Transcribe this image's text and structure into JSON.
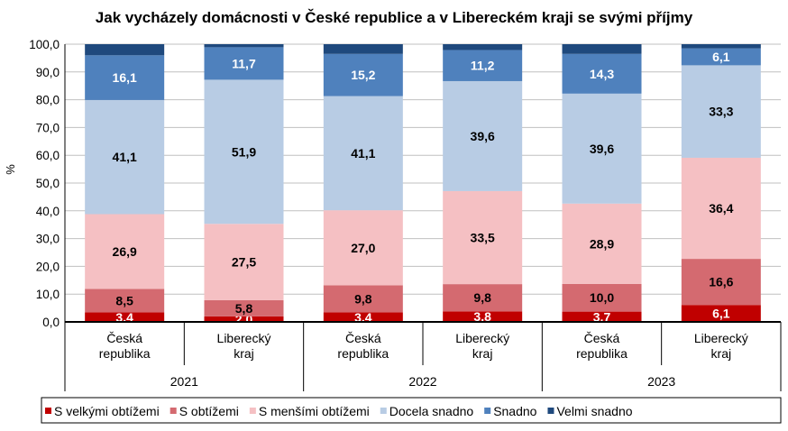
{
  "chart_data": {
    "type": "bar",
    "stacked": true,
    "title": "Jak vycházely domácnosti v České republice a v Libereckém kraji se svými příjmy",
    "ylabel": "%",
    "xlabel": "",
    "ylim": [
      0,
      100
    ],
    "yticks": [
      "0,0",
      "10,0",
      "20,0",
      "30,0",
      "40,0",
      "50,0",
      "60,0",
      "70,0",
      "80,0",
      "90,0",
      "100,0"
    ],
    "grid": true,
    "legend_position": "bottom",
    "categories": [
      {
        "label": [
          "Česká",
          "republika"
        ],
        "group": "2021"
      },
      {
        "label": [
          "Liberecký",
          "kraj"
        ],
        "group": "2021"
      },
      {
        "label": [
          "Česká",
          "republika"
        ],
        "group": "2022"
      },
      {
        "label": [
          "Liberecký",
          "kraj"
        ],
        "group": "2022"
      },
      {
        "label": [
          "Česká",
          "republika"
        ],
        "group": "2023"
      },
      {
        "label": [
          "Liberecký",
          "kraj"
        ],
        "group": "2023"
      }
    ],
    "groups": [
      "2021",
      "2022",
      "2023"
    ],
    "series": [
      {
        "name": "S velkými obtížemi",
        "color": "#c00000",
        "labelColor": "#ffffff",
        "values": [
          3.4,
          2.0,
          3.4,
          3.8,
          3.7,
          6.1
        ],
        "labels": [
          "3,4",
          "2,0",
          "3,4",
          "3,8",
          "3,7",
          "6,1"
        ]
      },
      {
        "name": "S obtížemi",
        "color": "#d46a70",
        "labelColor": "#000000",
        "values": [
          8.5,
          5.8,
          9.8,
          9.8,
          10.0,
          16.6
        ],
        "labels": [
          "8,5",
          "5,8",
          "9,8",
          "9,8",
          "10,0",
          "16,6"
        ]
      },
      {
        "name": "S menšími obtížemi",
        "color": "#f5c0c3",
        "labelColor": "#000000",
        "values": [
          26.9,
          27.5,
          27.0,
          33.5,
          28.9,
          36.4
        ],
        "labels": [
          "26,9",
          "27,5",
          "27,0",
          "33,5",
          "28,9",
          "36,4"
        ]
      },
      {
        "name": "Docela snadno",
        "color": "#b8cce4",
        "labelColor": "#000000",
        "values": [
          41.1,
          51.9,
          41.1,
          39.6,
          39.6,
          33.3
        ],
        "labels": [
          "41,1",
          "51,9",
          "41,1",
          "39,6",
          "39,6",
          "33,3"
        ]
      },
      {
        "name": "Snadno",
        "color": "#4f81bd",
        "labelColor": "#ffffff",
        "values": [
          16.1,
          11.7,
          15.2,
          11.2,
          14.3,
          6.1
        ],
        "labels": [
          "16,1",
          "11,7",
          "15,2",
          "11,2",
          "14,3",
          "6,1"
        ]
      },
      {
        "name": "Velmi snadno",
        "color": "#1f497d",
        "labelColor": "#ffffff",
        "values": [
          4.0,
          1.1,
          3.5,
          2.1,
          3.5,
          1.5
        ],
        "labels": [
          null,
          null,
          null,
          null,
          null,
          null
        ]
      }
    ]
  }
}
